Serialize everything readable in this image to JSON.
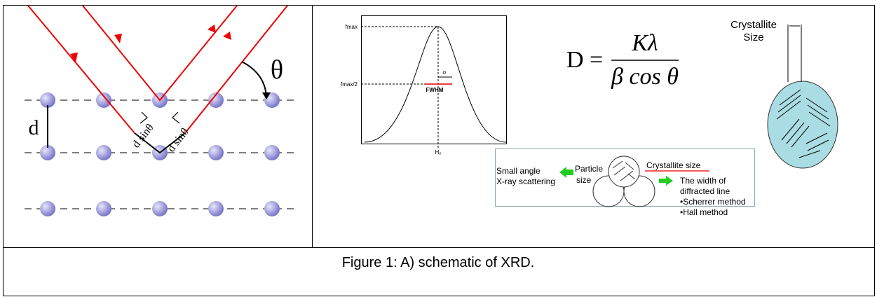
{
  "left_panel": {
    "theta": "θ",
    "d": "d",
    "path_labels": [
      "d sinθ",
      "d sinθ"
    ]
  },
  "middle_panel": {
    "peak": {
      "y_labels": [
        "fmax",
        "fmax/2"
      ],
      "sigma": "σ",
      "fwhm": "FWHM",
      "x_label": "H₀"
    },
    "equation": {
      "lhs": "D =",
      "numerator": "Kλ",
      "denominator": "β cos θ"
    },
    "crystallite": {
      "label": [
        "Crystallite",
        "Size"
      ]
    },
    "inset": {
      "left_text": [
        "Small angle",
        "X-ray scattering"
      ],
      "particle": [
        "Particle",
        "size"
      ],
      "crystallite_size": "Crystallite size",
      "right_text": [
        "The width of",
        "diffracted line",
        "•Scherrer method",
        "•Hall method"
      ]
    }
  },
  "caption": "Figure 1: A) schematic of XRD."
}
